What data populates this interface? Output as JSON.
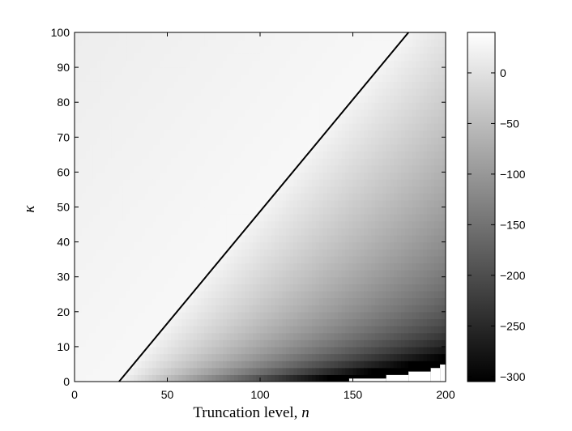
{
  "chart_data": {
    "type": "heatmap",
    "title": "",
    "xlabel": "Truncation level, ",
    "xlabel_var": "n",
    "ylabel": "κ",
    "xlim": [
      0,
      200
    ],
    "ylim": [
      0,
      100
    ],
    "x_ticks": [
      0,
      50,
      100,
      150,
      200
    ],
    "y_ticks": [
      0,
      10,
      20,
      30,
      40,
      50,
      60,
      70,
      80,
      90,
      100
    ],
    "colorbar": {
      "colormap": "gray",
      "range": [
        -305,
        40
      ],
      "ticks": [
        0,
        -50,
        -100,
        -150,
        -200,
        -250,
        -300
      ],
      "tick_labels": [
        "0",
        "−50",
        "−100",
        "−150",
        "−200",
        "−250",
        "−300"
      ]
    },
    "contour_line": {
      "description_free": true,
      "x": [
        24,
        180
      ],
      "y": [
        0,
        100
      ],
      "color": "#000000"
    },
    "undefined_region_steps": [
      {
        "x_start": 148,
        "kappa_top": 1
      },
      {
        "x_start": 168,
        "kappa_top": 2
      },
      {
        "x_start": 180,
        "kappa_top": 3
      },
      {
        "x_start": 192,
        "kappa_top": 4
      },
      {
        "x_start": 197,
        "kappa_top": 5
      }
    ],
    "grid": false
  }
}
